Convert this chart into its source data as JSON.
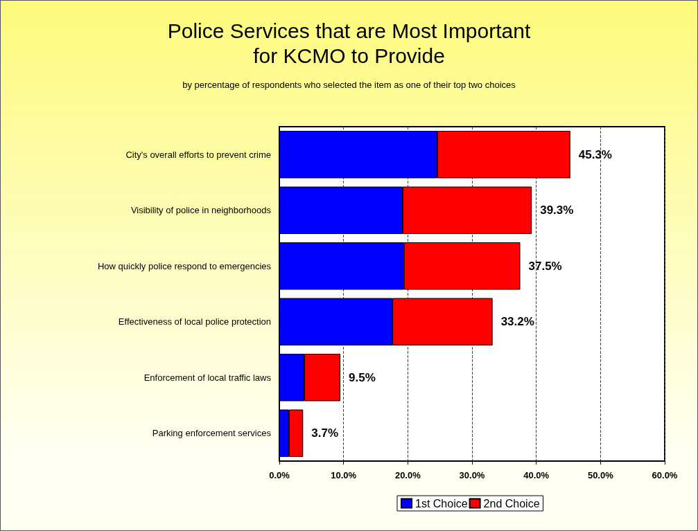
{
  "chart_data": {
    "type": "bar",
    "title": "Police Services that are Most Important\nfor KCMO to Provide",
    "subtitle": "by percentage of respondents who selected the item as one of their top two choices",
    "orientation": "horizontal",
    "stacked": true,
    "categories": [
      "City's overall efforts to prevent crime",
      "Visibility of police in neighborhoods",
      "How quickly police respond to emergencies",
      "Effectiveness of local police protection",
      "Enforcement of local traffic laws",
      "Parking enforcement services"
    ],
    "series": [
      {
        "name": "1st Choice",
        "color": "#0000ff",
        "values": [
          24.6,
          19.2,
          19.4,
          17.6,
          3.9,
          1.5
        ]
      },
      {
        "name": "2nd Choice",
        "color": "#ff0000",
        "values": [
          20.7,
          20.1,
          18.1,
          15.6,
          5.6,
          2.2
        ]
      }
    ],
    "totals": [
      "45.3%",
      "39.3%",
      "37.5%",
      "33.2%",
      "9.5%",
      "3.7%"
    ],
    "xlim": [
      0,
      60
    ],
    "xticks": [
      {
        "value": 0,
        "label": "0.0%"
      },
      {
        "value": 10,
        "label": "10.0%"
      },
      {
        "value": 20,
        "label": "20.0%"
      },
      {
        "value": 30,
        "label": "30.0%"
      },
      {
        "value": 40,
        "label": "40.0%"
      },
      {
        "value": 50,
        "label": "50.0%"
      },
      {
        "value": 60,
        "label": "60.0%"
      }
    ],
    "grid": "x",
    "legend": "bottom"
  }
}
